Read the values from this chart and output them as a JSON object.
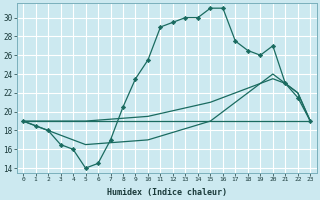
{
  "xlabel": "Humidex (Indice chaleur)",
  "bg_color": "#cce9f0",
  "line_color": "#1a6b60",
  "grid_color": "#b0d8e0",
  "xlim": [
    -0.5,
    23.5
  ],
  "ylim": [
    13.5,
    31.5
  ],
  "xticks": [
    0,
    1,
    2,
    3,
    4,
    5,
    6,
    7,
    8,
    9,
    10,
    11,
    12,
    13,
    14,
    15,
    16,
    17,
    18,
    19,
    20,
    21,
    22,
    23
  ],
  "yticks": [
    14,
    16,
    18,
    20,
    22,
    24,
    26,
    28,
    30
  ],
  "line1_x": [
    0,
    1,
    2,
    3,
    4,
    5,
    6,
    7,
    8,
    9,
    10,
    11,
    12,
    13,
    14,
    15,
    16,
    17,
    18,
    19,
    20,
    21,
    22,
    23
  ],
  "line1_y": [
    19,
    18.5,
    18,
    16.5,
    16,
    14,
    14.5,
    17,
    20.5,
    23.5,
    25.5,
    29,
    29.5,
    30,
    30,
    31,
    31,
    27.5,
    26.5,
    26,
    27,
    23,
    21.5,
    19
  ],
  "line2_x": [
    0,
    23
  ],
  "line2_y": [
    19,
    19
  ],
  "line3_x": [
    0,
    5,
    10,
    15,
    20,
    21,
    22,
    23
  ],
  "line3_y": [
    19,
    19,
    19.5,
    21,
    23.5,
    23,
    22,
    19
  ],
  "line4_x": [
    0,
    5,
    10,
    15,
    18,
    19,
    20,
    21,
    22,
    23
  ],
  "line4_y": [
    19,
    16.5,
    17,
    19,
    22,
    23,
    24,
    23,
    22,
    19
  ]
}
